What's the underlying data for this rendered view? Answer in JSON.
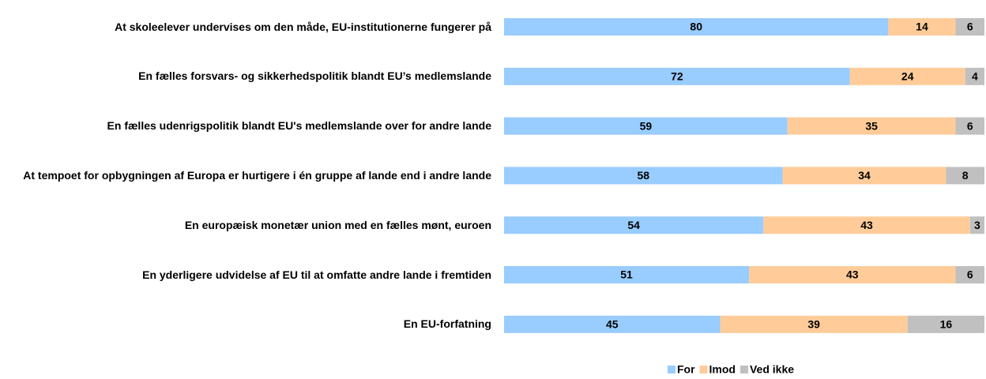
{
  "chart_data": {
    "type": "stacked_bar_horizontal",
    "categories": [
      "At skoleelever undervises om den måde, EU-institutionerne fungerer på",
      "En fælles forsvars- og sikkerhedspolitik blandt EU’s medlemslande",
      "En fælles udenrigspolitik blandt EU's medlemslande over for andre lande",
      "At tempoet for opbygningen af Europa er hurtigere i én gruppe af lande end i andre lande",
      "En europæisk monetær union med en fælles mønt, euroen",
      "En yderligere udvidelse af EU til at omfatte andre lande i fremtiden",
      "En EU-forfatning"
    ],
    "series": [
      {
        "name": "For",
        "color": "#99ccff",
        "values": [
          80,
          72,
          59,
          58,
          54,
          51,
          45
        ]
      },
      {
        "name": "Imod",
        "color": "#ffcc99",
        "values": [
          14,
          24,
          35,
          34,
          43,
          43,
          39
        ]
      },
      {
        "name": "Ved ikke",
        "color": "#c0c0c0",
        "values": [
          6,
          4,
          6,
          8,
          3,
          6,
          16
        ]
      }
    ],
    "xlim": [
      0,
      100
    ],
    "legend": "bottom"
  }
}
